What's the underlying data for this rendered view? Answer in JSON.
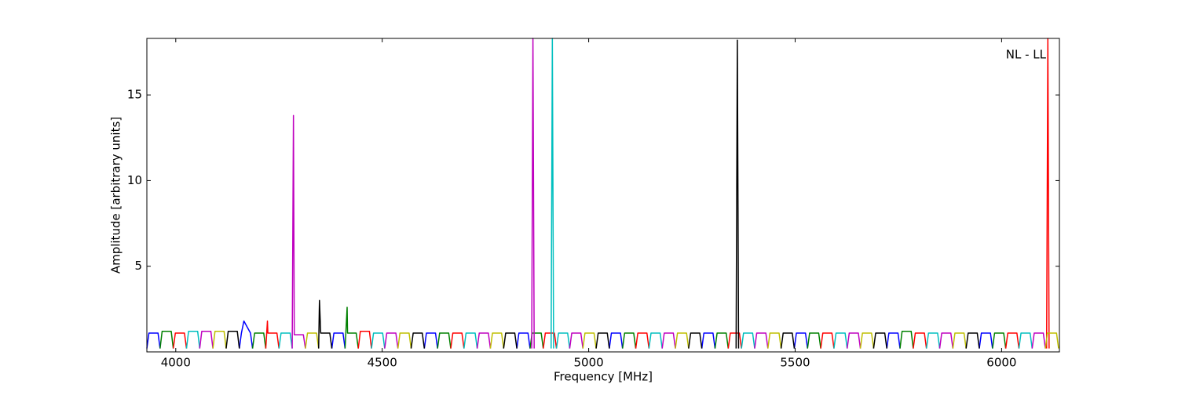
{
  "chart_data": {
    "type": "line",
    "annotation": "NL - LL",
    "x_label": "Frequency [MHz]",
    "y_label": "Amplitude [arbitrary units]",
    "xlim": [
      3930,
      6140
    ],
    "ylim": [
      0,
      18.3
    ],
    "xticks": [
      4000,
      4500,
      5000,
      5500,
      6000
    ],
    "yticks": [
      5,
      10,
      15
    ],
    "grid": false,
    "series": [
      {
        "color": "#0000ff",
        "x": [
          3930,
          3935,
          3957,
          3962,
          null,
          4154,
          4159,
          4165,
          4181,
          4186,
          null,
          4378,
          4383,
          4405,
          4410,
          null,
          4602,
          4607,
          4629,
          4634,
          null,
          4826,
          4831,
          4853,
          4858,
          null,
          5050,
          5055,
          5077,
          5082,
          null,
          5274,
          5279,
          5301,
          5306,
          null,
          5498,
          5503,
          5525,
          5530,
          null,
          5722,
          5727,
          5749,
          5754,
          null,
          5946,
          5951,
          5973,
          5978
        ],
        "values": [
          0.2,
          1.1,
          1.1,
          0.2,
          null,
          0.2,
          1.1,
          1.8,
          1.1,
          0.2,
          null,
          0.2,
          1.1,
          1.1,
          0.2,
          null,
          0.2,
          1.1,
          1.1,
          0.2,
          null,
          0.2,
          1.1,
          1.1,
          0.2,
          null,
          0.2,
          1.1,
          1.1,
          0.2,
          null,
          0.2,
          1.1,
          1.1,
          0.2,
          null,
          0.2,
          1.1,
          1.1,
          0.2,
          null,
          0.2,
          1.1,
          1.1,
          0.2,
          null,
          0.2,
          1.1,
          1.1,
          0.2
        ]
      },
      {
        "color": "#008000",
        "x": [
          3962,
          3967,
          3989,
          3994,
          null,
          4186,
          4191,
          4213,
          4218,
          null,
          4410,
          4415,
          4416,
          4437,
          4442,
          null,
          4634,
          4639,
          4661,
          4666,
          null,
          4858,
          4863,
          4885,
          4890,
          null,
          5082,
          5087,
          5109,
          5114,
          null,
          5306,
          5311,
          5333,
          5338,
          null,
          5530,
          5535,
          5557,
          5562,
          null,
          5754,
          5759,
          5781,
          5786,
          null,
          5978,
          5983,
          6005,
          6010
        ],
        "values": [
          0.2,
          1.2,
          1.2,
          0.2,
          null,
          0.2,
          1.1,
          1.1,
          0.2,
          null,
          0.2,
          2.6,
          1.1,
          1.1,
          0.2,
          null,
          0.2,
          1.1,
          1.1,
          0.2,
          null,
          0.2,
          1.1,
          1.1,
          0.2,
          null,
          0.2,
          1.1,
          1.1,
          0.2,
          null,
          0.2,
          1.1,
          1.1,
          0.2,
          null,
          0.2,
          1.1,
          1.1,
          0.2,
          null,
          0.2,
          1.2,
          1.2,
          0.2,
          null,
          0.2,
          1.1,
          1.1,
          0.2
        ]
      },
      {
        "color": "#ff0000",
        "x": [
          3994,
          3999,
          4021,
          4026,
          null,
          4218,
          4222,
          4223,
          4245,
          4250,
          null,
          4442,
          4447,
          4469,
          4474,
          null,
          4666,
          4671,
          4693,
          4698,
          null,
          4890,
          4895,
          4917,
          4922,
          null,
          5114,
          5119,
          5141,
          5146,
          null,
          5338,
          5343,
          5365,
          5370,
          null,
          5562,
          5567,
          5589,
          5594,
          null,
          5786,
          5791,
          5813,
          5818,
          null,
          6010,
          6015,
          6037,
          6042,
          null,
          6109,
          6112,
          6115
        ],
        "values": [
          0.2,
          1.1,
          1.1,
          0.2,
          null,
          0.2,
          1.8,
          1.1,
          1.1,
          0.2,
          null,
          0.2,
          1.2,
          1.2,
          0.2,
          null,
          0.2,
          1.1,
          1.1,
          0.2,
          null,
          0.2,
          1.1,
          1.1,
          0.2,
          null,
          0.2,
          1.1,
          1.1,
          0.2,
          null,
          0.2,
          1.1,
          1.1,
          0.2,
          null,
          0.2,
          1.1,
          1.1,
          0.2,
          null,
          0.2,
          1.1,
          1.1,
          0.2,
          null,
          0.2,
          1.1,
          1.1,
          0.2,
          null,
          0.2,
          18.3,
          0.2
        ]
      },
      {
        "color": "#00bfbf",
        "x": [
          4026,
          4031,
          4053,
          4058,
          null,
          4250,
          4255,
          4277,
          4282,
          null,
          4474,
          4479,
          4501,
          4506,
          null,
          4698,
          4703,
          4725,
          4730,
          null,
          4909,
          4912,
          4915,
          null,
          4922,
          4927,
          4949,
          4954,
          null,
          5146,
          5151,
          5173,
          5178,
          null,
          5370,
          5375,
          5397,
          5402,
          null,
          5594,
          5599,
          5621,
          5626,
          null,
          5818,
          5823,
          5845,
          5850,
          null,
          6042,
          6047,
          6069,
          6074
        ],
        "values": [
          0.2,
          1.2,
          1.2,
          0.2,
          null,
          0.2,
          1.1,
          1.1,
          0.2,
          null,
          0.2,
          1.1,
          1.1,
          0.2,
          null,
          0.2,
          1.1,
          1.1,
          0.2,
          null,
          0.2,
          18.3,
          0.2,
          null,
          0.2,
          1.1,
          1.1,
          0.2,
          null,
          0.2,
          1.1,
          1.1,
          0.2,
          null,
          0.2,
          1.1,
          1.1,
          0.2,
          null,
          0.2,
          1.1,
          1.1,
          0.2,
          null,
          0.2,
          1.1,
          1.1,
          0.2,
          null,
          0.2,
          1.1,
          1.1,
          0.2
        ]
      },
      {
        "color": "#bf00bf",
        "x": [
          4058,
          4063,
          4085,
          4090,
          null,
          4282,
          4285,
          4287,
          4309,
          4314,
          null,
          4506,
          4511,
          4533,
          4538,
          null,
          4730,
          4735,
          4757,
          4762,
          null,
          4862,
          4865,
          4868,
          null,
          4954,
          4959,
          4981,
          4986,
          null,
          5178,
          5183,
          5205,
          5210,
          null,
          5402,
          5407,
          5429,
          5434,
          null,
          5626,
          5631,
          5653,
          5658,
          null,
          5850,
          5855,
          5877,
          5882,
          null,
          6074,
          6079,
          6101,
          6106
        ],
        "values": [
          0.2,
          1.2,
          1.2,
          0.2,
          null,
          0.2,
          13.8,
          1.0,
          1.0,
          0.2,
          null,
          0.2,
          1.1,
          1.1,
          0.2,
          null,
          0.2,
          1.1,
          1.1,
          0.2,
          null,
          0.2,
          18.3,
          0.2,
          null,
          0.2,
          1.1,
          1.1,
          0.2,
          null,
          0.2,
          1.1,
          1.1,
          0.2,
          null,
          0.2,
          1.1,
          1.1,
          0.2,
          null,
          0.2,
          1.1,
          1.1,
          0.2,
          null,
          0.2,
          1.1,
          1.1,
          0.2,
          null,
          0.2,
          1.1,
          1.1,
          0.2
        ]
      },
      {
        "color": "#bfbf00",
        "x": [
          4090,
          4095,
          4117,
          4122,
          null,
          4314,
          4319,
          4341,
          4346,
          null,
          4538,
          4543,
          4565,
          4570,
          null,
          4762,
          4767,
          4789,
          4794,
          null,
          4986,
          4991,
          5013,
          5018,
          null,
          5210,
          5215,
          5237,
          5242,
          null,
          5434,
          5439,
          5461,
          5466,
          null,
          5658,
          5663,
          5685,
          5690,
          null,
          5882,
          5887,
          5909,
          5914,
          null,
          6106,
          6111,
          6133,
          6138
        ],
        "values": [
          0.2,
          1.2,
          1.2,
          0.2,
          null,
          0.2,
          1.1,
          1.1,
          0.2,
          null,
          0.2,
          1.1,
          1.1,
          0.2,
          null,
          0.2,
          1.1,
          1.1,
          0.2,
          null,
          0.2,
          1.1,
          1.1,
          0.2,
          null,
          0.2,
          1.1,
          1.1,
          0.2,
          null,
          0.2,
          1.1,
          1.1,
          0.2,
          null,
          0.2,
          1.1,
          1.1,
          0.2,
          null,
          0.2,
          1.1,
          1.1,
          0.2,
          null,
          0.2,
          1.1,
          1.1,
          0.2
        ]
      },
      {
        "color": "#000000",
        "x": [
          4122,
          4127,
          4149,
          4154,
          null,
          4346,
          4348,
          4351,
          4373,
          4378,
          null,
          4570,
          4575,
          4597,
          4602,
          null,
          4794,
          4799,
          4821,
          4826,
          null,
          5018,
          5023,
          5045,
          5050,
          null,
          5242,
          5247,
          5269,
          5274,
          null,
          5357,
          5360,
          5363,
          null,
          5466,
          5471,
          5493,
          5498,
          null,
          5690,
          5695,
          5717,
          5722,
          null,
          5914,
          5919,
          5941,
          5946
        ],
        "values": [
          0.2,
          1.2,
          1.2,
          0.2,
          null,
          0.2,
          3.0,
          1.1,
          1.1,
          0.2,
          null,
          0.2,
          1.1,
          1.1,
          0.2,
          null,
          0.2,
          1.1,
          1.1,
          0.2,
          null,
          0.2,
          1.1,
          1.1,
          0.2,
          null,
          0.2,
          1.1,
          1.1,
          0.2,
          null,
          0.2,
          18.2,
          0.2,
          null,
          0.2,
          1.1,
          1.1,
          0.2,
          null,
          0.2,
          1.1,
          1.1,
          0.2,
          null,
          0.2,
          1.1,
          1.1,
          0.2
        ]
      }
    ]
  }
}
